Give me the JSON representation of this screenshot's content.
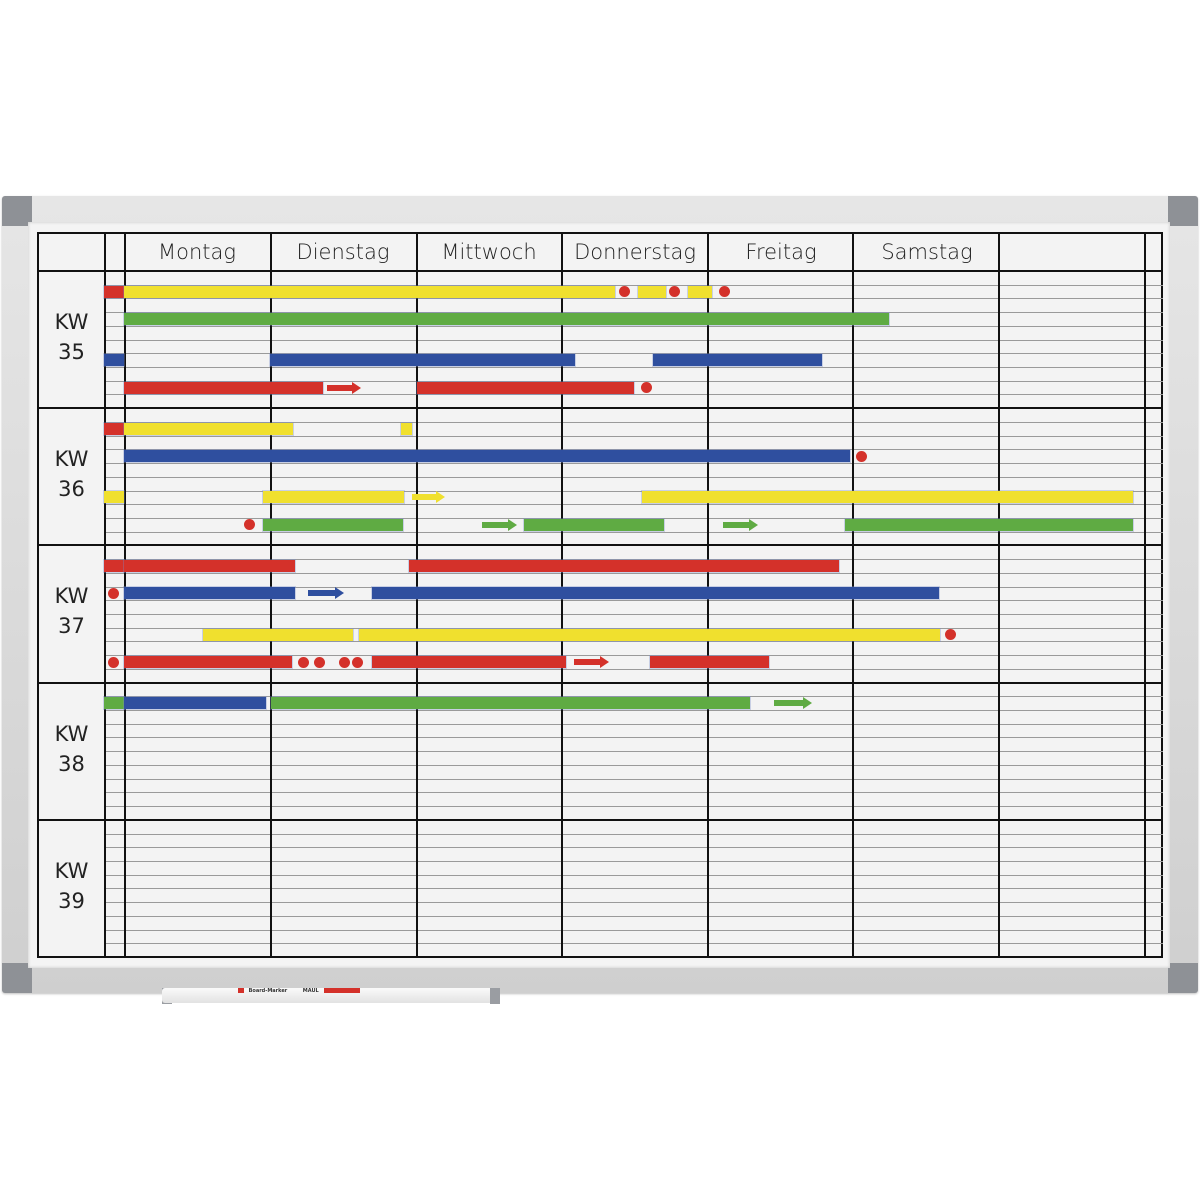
{
  "board": {
    "days": [
      "Montag",
      "Dienstag",
      "Mittwoch",
      "Donnerstag",
      "Freitag",
      "Samstag",
      ""
    ],
    "weeks": [
      {
        "kw": "KW",
        "num": "35"
      },
      {
        "kw": "KW",
        "num": "36"
      },
      {
        "kw": "KW",
        "num": "37"
      },
      {
        "kw": "KW",
        "num": "38"
      },
      {
        "kw": "KW",
        "num": "39"
      }
    ],
    "rows_per_week": 10,
    "colors": {
      "red": "#d4312a",
      "yellow": "#f0e02e",
      "green": "#5fab43",
      "blue": "#2f4f9f"
    },
    "items": [
      {
        "week": 0,
        "row": 1,
        "type": "bar",
        "color": "red",
        "start": -0.137,
        "end": 0
      },
      {
        "week": 0,
        "row": 1,
        "type": "bar",
        "color": "yellow",
        "start": 0,
        "end": 3.36
      },
      {
        "week": 0,
        "row": 1,
        "type": "dot",
        "color": "red",
        "start": 3.43
      },
      {
        "week": 0,
        "row": 1,
        "type": "bar",
        "color": "yellow",
        "start": 3.52,
        "end": 3.71
      },
      {
        "week": 0,
        "row": 1,
        "type": "dot",
        "color": "red",
        "start": 3.77
      },
      {
        "week": 0,
        "row": 1,
        "type": "bar",
        "color": "yellow",
        "start": 3.86,
        "end": 4.03
      },
      {
        "week": 0,
        "row": 1,
        "type": "dot",
        "color": "red",
        "start": 4.11
      },
      {
        "week": 0,
        "row": 3,
        "type": "bar",
        "color": "green",
        "start": 0,
        "end": 5.24
      },
      {
        "week": 0,
        "row": 6,
        "type": "bar",
        "color": "blue",
        "start": -0.137,
        "end": 0
      },
      {
        "week": 0,
        "row": 6,
        "type": "bar",
        "color": "blue",
        "start": 1.0,
        "end": 3.09
      },
      {
        "week": 0,
        "row": 6,
        "type": "bar",
        "color": "blue",
        "start": 3.62,
        "end": 4.78
      },
      {
        "week": 0,
        "row": 8,
        "type": "bar",
        "color": "red",
        "start": 0,
        "end": 1.36
      },
      {
        "week": 0,
        "row": 8,
        "type": "arrow",
        "color": "red",
        "start": 1.39,
        "end": 1.62
      },
      {
        "week": 0,
        "row": 8,
        "type": "bar",
        "color": "red",
        "start": 2.01,
        "end": 3.49
      },
      {
        "week": 0,
        "row": 8,
        "type": "dot",
        "color": "red",
        "start": 3.58
      },
      {
        "week": 1,
        "row": 1,
        "type": "bar",
        "color": "red",
        "start": -0.137,
        "end": 0
      },
      {
        "week": 1,
        "row": 1,
        "type": "bar",
        "color": "yellow",
        "start": 0,
        "end": 1.16
      },
      {
        "week": 1,
        "row": 1,
        "type": "bar",
        "color": "yellow",
        "start": 1.9,
        "end": 1.97
      },
      {
        "week": 1,
        "row": 3,
        "type": "bar",
        "color": "blue",
        "start": 0,
        "end": 4.97
      },
      {
        "week": 1,
        "row": 3,
        "type": "dot",
        "color": "red",
        "start": 5.05
      },
      {
        "week": 1,
        "row": 6,
        "type": "bar",
        "color": "yellow",
        "start": -0.137,
        "end": 0
      },
      {
        "week": 1,
        "row": 6,
        "type": "bar",
        "color": "yellow",
        "start": 0.95,
        "end": 1.92
      },
      {
        "week": 1,
        "row": 6,
        "type": "arrow",
        "color": "yellow",
        "start": 1.97,
        "end": 2.2
      },
      {
        "week": 1,
        "row": 6,
        "type": "bar",
        "color": "yellow",
        "start": 3.55,
        "end": 6.91
      },
      {
        "week": 1,
        "row": 8,
        "type": "dot",
        "color": "red",
        "start": 0.86
      },
      {
        "week": 1,
        "row": 8,
        "type": "bar",
        "color": "green",
        "start": 0.95,
        "end": 1.91
      },
      {
        "week": 1,
        "row": 8,
        "type": "arrow",
        "color": "green",
        "start": 2.45,
        "end": 2.69
      },
      {
        "week": 1,
        "row": 8,
        "type": "bar",
        "color": "green",
        "start": 2.74,
        "end": 3.7
      },
      {
        "week": 1,
        "row": 8,
        "type": "arrow",
        "color": "green",
        "start": 4.1,
        "end": 4.34
      },
      {
        "week": 1,
        "row": 8,
        "type": "bar",
        "color": "green",
        "start": 4.94,
        "end": 6.91
      },
      {
        "week": 2,
        "row": 1,
        "type": "bar",
        "color": "red",
        "start": -0.137,
        "end": 0
      },
      {
        "week": 2,
        "row": 1,
        "type": "bar",
        "color": "red",
        "start": 0,
        "end": 1.17
      },
      {
        "week": 2,
        "row": 1,
        "type": "bar",
        "color": "red",
        "start": 1.95,
        "end": 4.9
      },
      {
        "week": 2,
        "row": 3,
        "type": "dot",
        "color": "red",
        "start": -0.075
      },
      {
        "week": 2,
        "row": 3,
        "type": "bar",
        "color": "blue",
        "start": 0,
        "end": 1.17
      },
      {
        "week": 2,
        "row": 3,
        "type": "arrow",
        "color": "blue",
        "start": 1.26,
        "end": 1.51
      },
      {
        "week": 2,
        "row": 3,
        "type": "bar",
        "color": "blue",
        "start": 1.7,
        "end": 5.58
      },
      {
        "week": 2,
        "row": 6,
        "type": "bar",
        "color": "yellow",
        "start": 0.54,
        "end": 1.57
      },
      {
        "week": 2,
        "row": 6,
        "type": "bar",
        "color": "yellow",
        "start": 1.61,
        "end": 5.59
      },
      {
        "week": 2,
        "row": 6,
        "type": "dot",
        "color": "red",
        "start": 5.66
      },
      {
        "week": 2,
        "row": 8,
        "type": "dot",
        "color": "red",
        "start": -0.075
      },
      {
        "week": 2,
        "row": 8,
        "type": "bar",
        "color": "red",
        "start": 0,
        "end": 1.15
      },
      {
        "week": 2,
        "row": 8,
        "type": "dot",
        "color": "red",
        "start": 1.23
      },
      {
        "week": 2,
        "row": 8,
        "type": "dot",
        "color": "red",
        "start": 1.34
      },
      {
        "week": 2,
        "row": 8,
        "type": "dot",
        "color": "red",
        "start": 1.51
      },
      {
        "week": 2,
        "row": 8,
        "type": "dot",
        "color": "red",
        "start": 1.6
      },
      {
        "week": 2,
        "row": 8,
        "type": "bar",
        "color": "red",
        "start": 1.7,
        "end": 3.03
      },
      {
        "week": 2,
        "row": 8,
        "type": "arrow",
        "color": "red",
        "start": 3.08,
        "end": 3.32
      },
      {
        "week": 2,
        "row": 8,
        "type": "bar",
        "color": "red",
        "start": 3.6,
        "end": 4.42
      },
      {
        "week": 3,
        "row": 1,
        "type": "bar",
        "color": "green",
        "start": -0.137,
        "end": 0
      },
      {
        "week": 3,
        "row": 1,
        "type": "bar",
        "color": "blue",
        "start": 0,
        "end": 0.97
      },
      {
        "week": 3,
        "row": 1,
        "type": "bar",
        "color": "green",
        "start": 1.01,
        "end": 4.29
      },
      {
        "week": 3,
        "row": 1,
        "type": "arrow",
        "color": "green",
        "start": 4.45,
        "end": 4.71
      }
    ]
  },
  "tray": {
    "marker_label": "Board-Marker",
    "brand": "MAUL"
  }
}
